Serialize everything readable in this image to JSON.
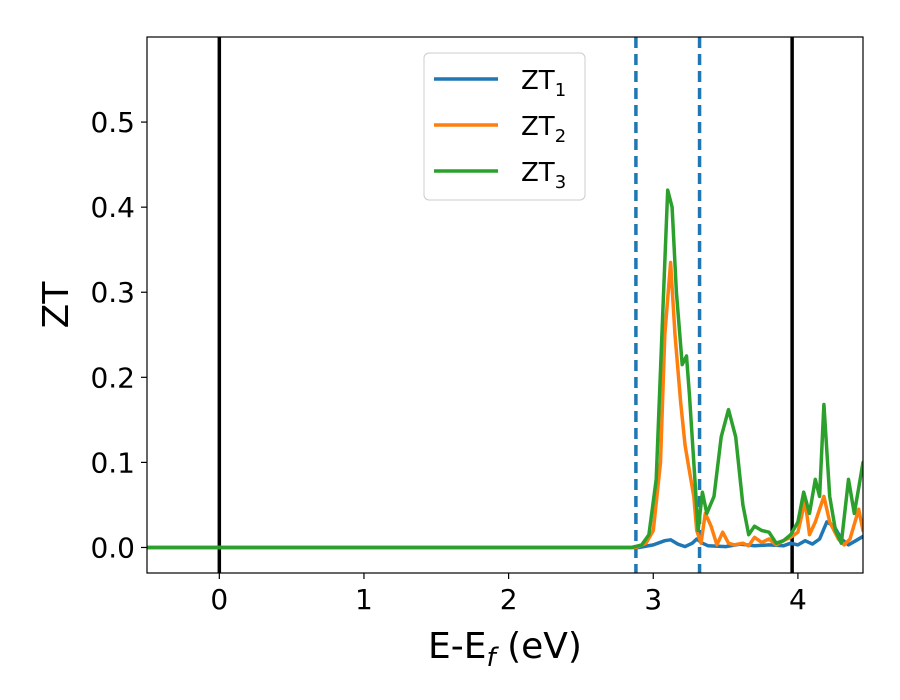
{
  "chart_data": {
    "type": "line",
    "xlabel": "E-E",
    "xlabel_subscript": "f",
    "xlabel_suffix": " (eV)",
    "ylabel": "ZT",
    "xlim": [
      -0.5,
      4.45
    ],
    "ylim": [
      -0.03,
      0.6
    ],
    "xticks": [
      0,
      1,
      2,
      3,
      4
    ],
    "xtick_labels": [
      "0",
      "1",
      "2",
      "3",
      "4"
    ],
    "yticks": [
      0.0,
      0.1,
      0.2,
      0.3,
      0.4,
      0.5
    ],
    "ytick_labels": [
      "0.0",
      "0.1",
      "0.2",
      "0.3",
      "0.4",
      "0.5"
    ],
    "grid": false,
    "legend_position": "top-center",
    "series": [
      {
        "name": "ZT",
        "name_subscript": "1",
        "color": "#1f77b4",
        "points": [
          [
            -0.5,
            0
          ],
          [
            2.9,
            0
          ],
          [
            3.0,
            0.003
          ],
          [
            3.08,
            0.008
          ],
          [
            3.12,
            0.009
          ],
          [
            3.17,
            0.004
          ],
          [
            3.22,
            0.001
          ],
          [
            3.27,
            0.005
          ],
          [
            3.3,
            0.01
          ],
          [
            3.34,
            0.005
          ],
          [
            3.38,
            0.002
          ],
          [
            3.5,
            0.001
          ],
          [
            3.6,
            0.004
          ],
          [
            3.7,
            0.002
          ],
          [
            3.8,
            0.003
          ],
          [
            3.9,
            0.002
          ],
          [
            3.95,
            0.005
          ],
          [
            4.0,
            0.003
          ],
          [
            4.05,
            0.008
          ],
          [
            4.1,
            0.004
          ],
          [
            4.15,
            0.01
          ],
          [
            4.2,
            0.03
          ],
          [
            4.25,
            0.025
          ],
          [
            4.3,
            0.01
          ],
          [
            4.35,
            0.003
          ],
          [
            4.4,
            0.008
          ],
          [
            4.45,
            0.013
          ]
        ]
      },
      {
        "name": "ZT",
        "name_subscript": "2",
        "color": "#ff7f0e",
        "points": [
          [
            -0.5,
            0
          ],
          [
            2.88,
            0
          ],
          [
            2.95,
            0.005
          ],
          [
            3.0,
            0.02
          ],
          [
            3.05,
            0.1
          ],
          [
            3.08,
            0.25
          ],
          [
            3.12,
            0.335
          ],
          [
            3.15,
            0.25
          ],
          [
            3.19,
            0.17
          ],
          [
            3.22,
            0.12
          ],
          [
            3.25,
            0.09
          ],
          [
            3.28,
            0.06
          ],
          [
            3.3,
            0.02
          ],
          [
            3.33,
            0.005
          ],
          [
            3.36,
            0.04
          ],
          [
            3.4,
            0.025
          ],
          [
            3.44,
            0.003
          ],
          [
            3.48,
            0.018
          ],
          [
            3.52,
            0.005
          ],
          [
            3.56,
            0.003
          ],
          [
            3.62,
            0.005
          ],
          [
            3.66,
            0.002
          ],
          [
            3.7,
            0.012
          ],
          [
            3.75,
            0.006
          ],
          [
            3.8,
            0.01
          ],
          [
            3.85,
            0.003
          ],
          [
            3.9,
            0.008
          ],
          [
            3.95,
            0.012
          ],
          [
            4.0,
            0.018
          ],
          [
            4.05,
            0.055
          ],
          [
            4.08,
            0.015
          ],
          [
            4.12,
            0.03
          ],
          [
            4.18,
            0.06
          ],
          [
            4.22,
            0.03
          ],
          [
            4.28,
            0.01
          ],
          [
            4.32,
            0.003
          ],
          [
            4.36,
            0.01
          ],
          [
            4.42,
            0.045
          ],
          [
            4.45,
            0.02
          ]
        ]
      },
      {
        "name": "ZT",
        "name_subscript": "3",
        "color": "#2ca02c",
        "points": [
          [
            -0.5,
            0
          ],
          [
            2.85,
            0
          ],
          [
            2.92,
            0.003
          ],
          [
            2.97,
            0.015
          ],
          [
            3.02,
            0.08
          ],
          [
            3.06,
            0.25
          ],
          [
            3.1,
            0.42
          ],
          [
            3.13,
            0.4
          ],
          [
            3.16,
            0.3
          ],
          [
            3.2,
            0.215
          ],
          [
            3.23,
            0.225
          ],
          [
            3.25,
            0.18
          ],
          [
            3.28,
            0.1
          ],
          [
            3.31,
            0.02
          ],
          [
            3.34,
            0.065
          ],
          [
            3.37,
            0.04
          ],
          [
            3.42,
            0.06
          ],
          [
            3.47,
            0.13
          ],
          [
            3.52,
            0.162
          ],
          [
            3.57,
            0.13
          ],
          [
            3.62,
            0.05
          ],
          [
            3.66,
            0.015
          ],
          [
            3.7,
            0.025
          ],
          [
            3.75,
            0.02
          ],
          [
            3.8,
            0.018
          ],
          [
            3.85,
            0.005
          ],
          [
            3.9,
            0.008
          ],
          [
            3.95,
            0.015
          ],
          [
            4.0,
            0.03
          ],
          [
            4.04,
            0.065
          ],
          [
            4.08,
            0.04
          ],
          [
            4.12,
            0.08
          ],
          [
            4.15,
            0.06
          ],
          [
            4.18,
            0.168
          ],
          [
            4.22,
            0.06
          ],
          [
            4.26,
            0.02
          ],
          [
            4.3,
            0.005
          ],
          [
            4.35,
            0.08
          ],
          [
            4.39,
            0.04
          ],
          [
            4.42,
            0.07
          ],
          [
            4.45,
            0.1
          ]
        ]
      }
    ],
    "vlines": [
      {
        "x": 0.0,
        "color": "#000000",
        "style": "solid"
      },
      {
        "x": 2.88,
        "color": "#1f77b4",
        "style": "dashed"
      },
      {
        "x": 3.32,
        "color": "#1f77b4",
        "style": "dashed"
      },
      {
        "x": 3.96,
        "color": "#000000",
        "style": "solid"
      }
    ]
  }
}
